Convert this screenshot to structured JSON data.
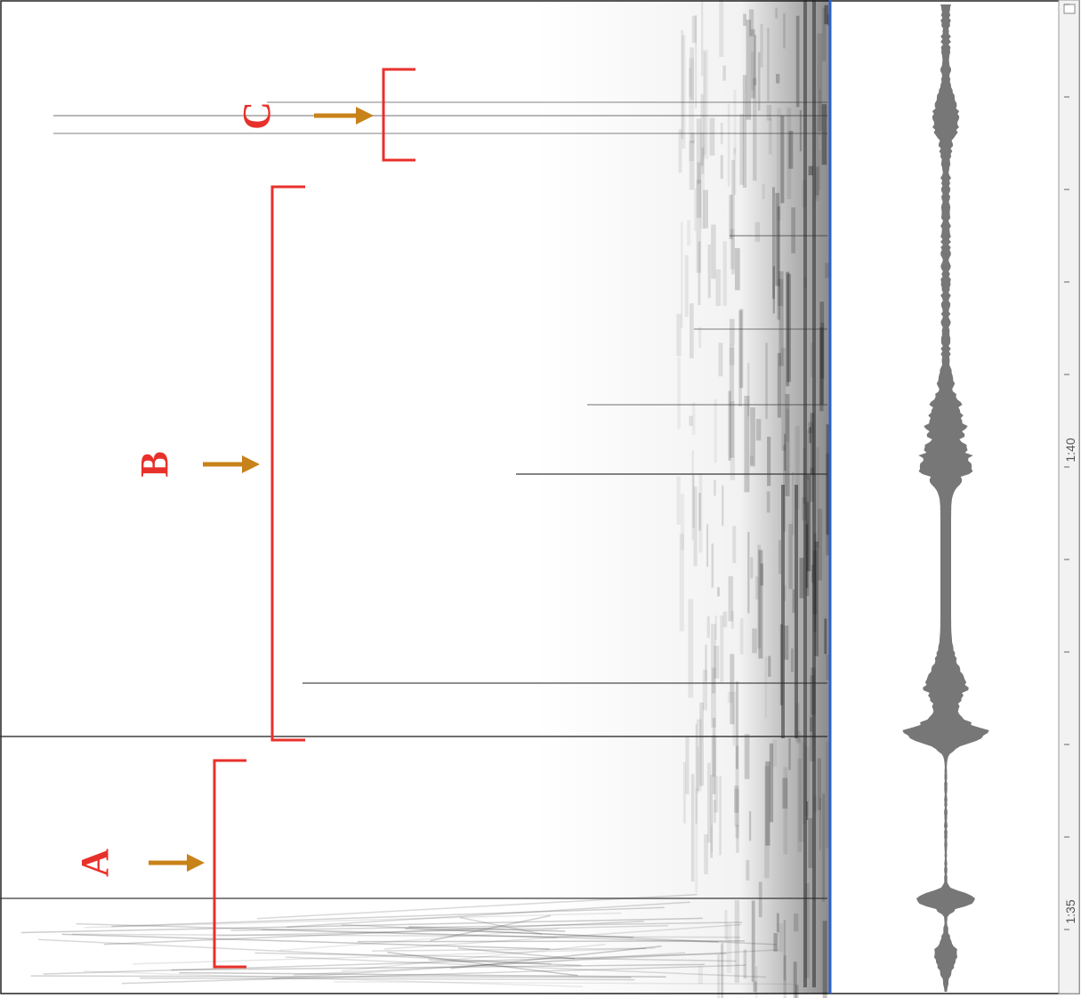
{
  "annotations": [
    {
      "label": "A"
    },
    {
      "label": "B"
    },
    {
      "label": "C"
    }
  ],
  "timeline": {
    "ticks": [
      "1:35",
      "1:40"
    ]
  }
}
